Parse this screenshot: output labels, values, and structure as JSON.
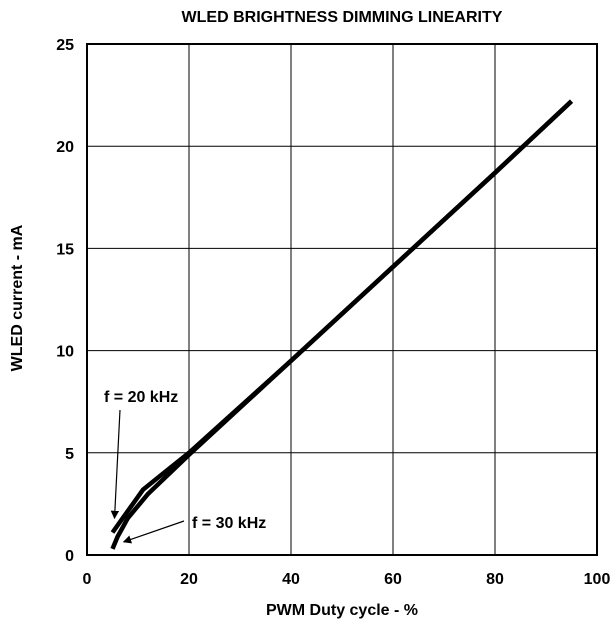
{
  "chart_data": {
    "type": "line",
    "title": "WLED BRIGHTNESS DIMMING LINEARITY",
    "xlabel": "PWM Duty cycle - %",
    "ylabel": "WLED current - mA",
    "xlim": [
      0,
      100
    ],
    "ylim": [
      0,
      25
    ],
    "xticks": [
      "0",
      "20",
      "40",
      "60",
      "80",
      "100"
    ],
    "yticks": [
      "0",
      "5",
      "10",
      "15",
      "20",
      "25"
    ],
    "grid": true,
    "series": [
      {
        "name": "f = 20 kHz",
        "x": [
          5,
          7,
          9,
          11,
          13,
          20,
          40,
          60,
          80,
          95
        ],
        "y": [
          1.1,
          1.8,
          2.5,
          3.2,
          3.6,
          5.0,
          9.5,
          14.1,
          18.7,
          22.2
        ]
      },
      {
        "name": "f = 30 kHz",
        "x": [
          5,
          6,
          8,
          10,
          12,
          20,
          40,
          60,
          80,
          95
        ],
        "y": [
          0.3,
          0.9,
          1.8,
          2.4,
          3.0,
          4.9,
          9.5,
          14.1,
          18.7,
          22.2
        ]
      }
    ],
    "annotations": [
      {
        "text": "f = 20 kHz",
        "target_series": 0,
        "point": [
          5,
          1.5
        ]
      },
      {
        "text": "f = 30 kHz",
        "target_series": 1,
        "point": [
          6,
          0.2
        ]
      }
    ]
  }
}
